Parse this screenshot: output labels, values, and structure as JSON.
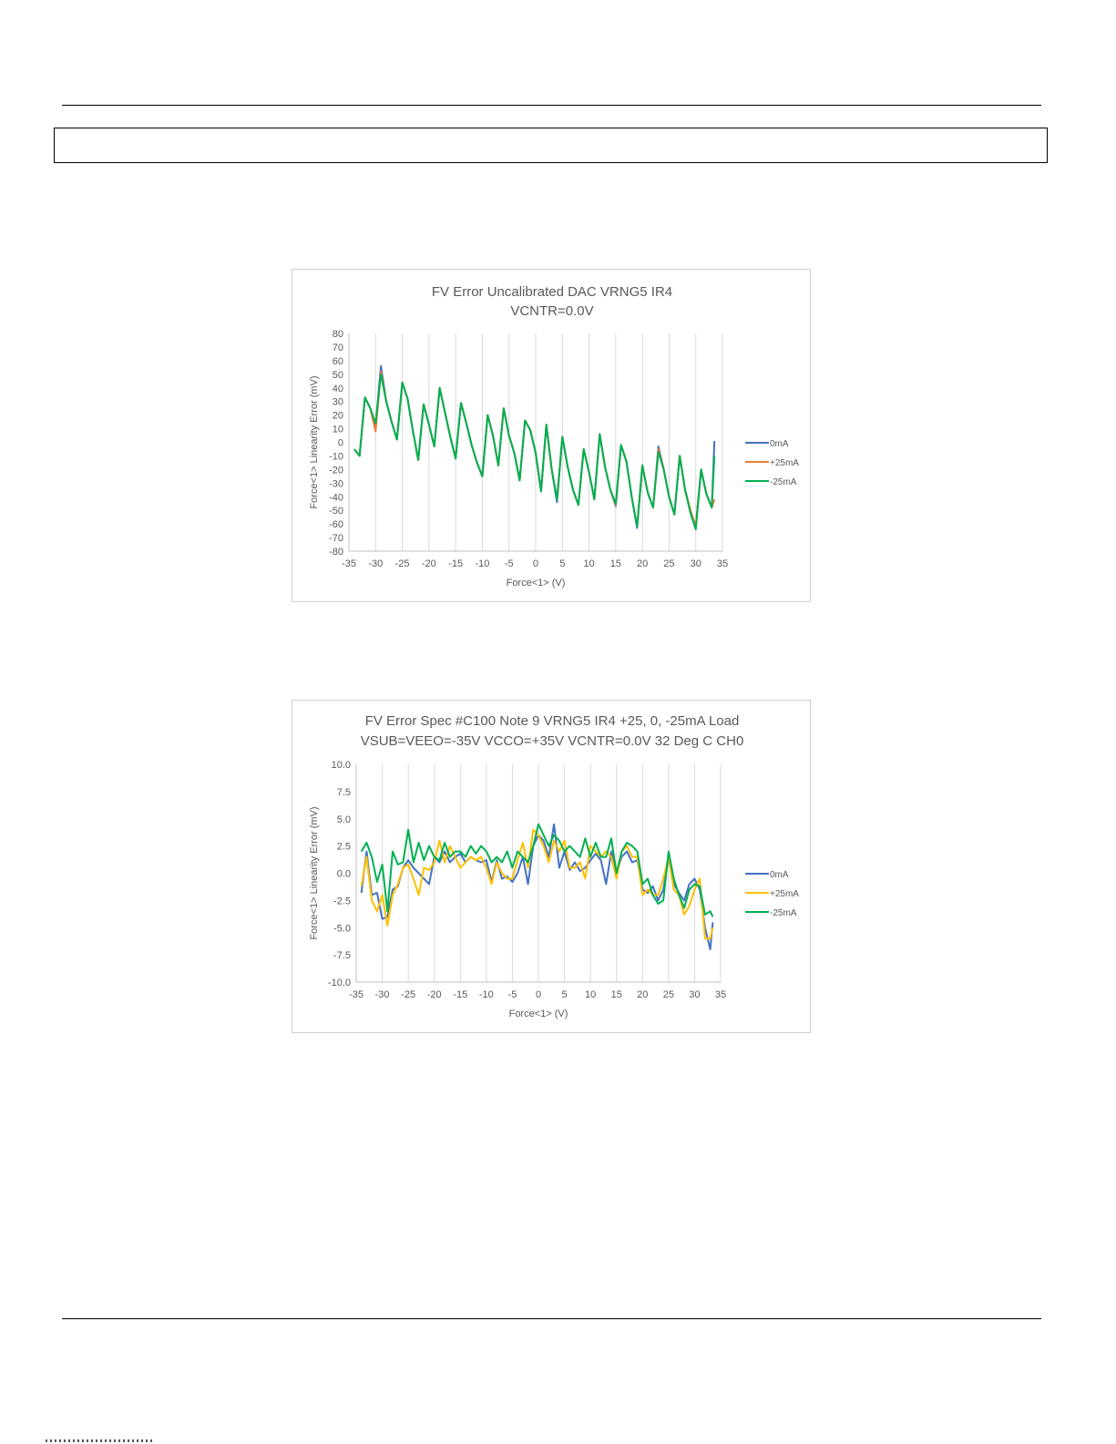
{
  "chart_data": [
    {
      "type": "line",
      "title": "FV Error Uncalibrated DAC VRNG5 IR4",
      "subtitle": "VCNTR=0.0V",
      "xlabel": "Force<1> (V)",
      "ylabel": "Force<1> Linearity Error (mV)",
      "xlim": [
        -35,
        35
      ],
      "ylim": [
        -80,
        80
      ],
      "xticks": [
        -35,
        -30,
        -25,
        -20,
        -15,
        -10,
        -5,
        0,
        5,
        10,
        15,
        20,
        25,
        30,
        35
      ],
      "yticks": [
        -80,
        -70,
        -60,
        -50,
        -40,
        -30,
        -20,
        -10,
        0,
        10,
        20,
        30,
        40,
        50,
        60,
        70,
        80
      ],
      "tick_decimals": 0,
      "grid": "vertical",
      "legend": "right",
      "x": [
        -34,
        -33,
        -32,
        -31,
        -30,
        -29,
        -28,
        -27,
        -26,
        -25,
        -24,
        -23,
        -22,
        -21,
        -20,
        -19,
        -18,
        -17,
        -16,
        -15,
        -14,
        -13,
        -12,
        -11,
        -10,
        -9,
        -8,
        -7,
        -6,
        -5,
        -4,
        -3,
        -2,
        -1,
        0,
        1,
        2,
        3,
        4,
        5,
        6,
        7,
        8,
        9,
        10,
        11,
        12,
        13,
        14,
        15,
        16,
        17,
        18,
        19,
        20,
        21,
        22,
        23,
        24,
        25,
        26,
        27,
        28,
        29,
        30,
        31,
        32,
        33,
        33.5
      ],
      "series": [
        {
          "name": "0mA",
          "color": "#4472C4",
          "values": [
            -5,
            -10,
            33,
            25,
            12,
            56,
            30,
            15,
            2,
            44,
            32,
            8,
            -13,
            28,
            13,
            -3,
            40,
            22,
            4,
            -12,
            29,
            14,
            -2,
            -15,
            -25,
            20,
            5,
            -17,
            25,
            5,
            -8,
            -28,
            16,
            9,
            -8,
            -36,
            13,
            -20,
            -44,
            4,
            -18,
            -35,
            -46,
            -5,
            -22,
            -42,
            6,
            -18,
            -35,
            -47,
            -2,
            -14,
            -40,
            -63,
            -17,
            -37,
            -48,
            -3,
            -20,
            -40,
            -53,
            -10,
            -35,
            -50,
            -62,
            -20,
            -38,
            -48,
            1
          ]
        },
        {
          "name": "+25mA",
          "color": "#ED7D31",
          "values": [
            -5,
            -10,
            33,
            25,
            8,
            52,
            30,
            15,
            2,
            44,
            32,
            8,
            -13,
            28,
            13,
            -3,
            40,
            22,
            4,
            -12,
            29,
            14,
            -2,
            -15,
            -25,
            20,
            5,
            -17,
            25,
            5,
            -8,
            -28,
            16,
            9,
            -8,
            -36,
            13,
            -20,
            -42,
            4,
            -18,
            -35,
            -46,
            -5,
            -22,
            -42,
            6,
            -18,
            -35,
            -46,
            -2,
            -14,
            -40,
            -62,
            -17,
            -37,
            -48,
            -5,
            -20,
            -40,
            -53,
            -10,
            -35,
            -50,
            -62,
            -20,
            -38,
            -48,
            -42
          ]
        },
        {
          "name": "-25mA",
          "color": "#00B050",
          "values": [
            -5,
            -10,
            33,
            25,
            14,
            50,
            30,
            15,
            2,
            44,
            32,
            8,
            -13,
            28,
            13,
            -3,
            40,
            22,
            4,
            -12,
            29,
            14,
            -2,
            -15,
            -25,
            20,
            5,
            -17,
            25,
            5,
            -8,
            -28,
            16,
            9,
            -8,
            -36,
            13,
            -20,
            -42,
            4,
            -18,
            -35,
            -46,
            -5,
            -22,
            -42,
            6,
            -18,
            -35,
            -45,
            -2,
            -14,
            -40,
            -62,
            -17,
            -37,
            -48,
            -7,
            -20,
            -40,
            -53,
            -10,
            -35,
            -52,
            -64,
            -20,
            -38,
            -48,
            -10
          ]
        }
      ]
    },
    {
      "type": "line",
      "title": "FV Error Spec #C100 Note 9 VRNG5 IR4 +25, 0, -25mA Load",
      "subtitle": "VSUB=VEEO=-35V VCCO=+35V VCNTR=0.0V 32 Deg C CH0",
      "xlabel": "Force<1> (V)",
      "ylabel": "Force<1> Linearity Error (mV)",
      "xlim": [
        -35,
        35
      ],
      "ylim": [
        -10,
        10
      ],
      "xticks": [
        -35,
        -30,
        -25,
        -20,
        -15,
        -10,
        -5,
        0,
        5,
        10,
        15,
        20,
        25,
        30,
        35
      ],
      "yticks": [
        -10,
        -7.5,
        -5,
        -2.5,
        0,
        2.5,
        5,
        7.5,
        10
      ],
      "tick_decimals": 1,
      "grid": "vertical",
      "legend": "right",
      "x": [
        -34,
        -33,
        -32,
        -31,
        -30,
        -29,
        -28,
        -27,
        -26,
        -25,
        -24,
        -23,
        -22,
        -21,
        -20,
        -19,
        -18,
        -17,
        -16,
        -15,
        -14,
        -13,
        -12,
        -11,
        -10,
        -9,
        -8,
        -7,
        -6,
        -5,
        -4,
        -3,
        -2,
        -1,
        0,
        1,
        2,
        3,
        4,
        5,
        6,
        7,
        8,
        9,
        10,
        11,
        12,
        13,
        14,
        15,
        16,
        17,
        18,
        19,
        20,
        21,
        22,
        23,
        24,
        25,
        26,
        27,
        28,
        29,
        30,
        31,
        32,
        33,
        33.5
      ],
      "series": [
        {
          "name": "0mA",
          "color": "#4472C4",
          "values": [
            -1.8,
            2.0,
            -2.0,
            -1.8,
            -4.2,
            -4.0,
            -1.5,
            -1.2,
            0.5,
            1.2,
            0.5,
            0.0,
            -0.5,
            -1.0,
            1.5,
            1.0,
            2.0,
            1.0,
            1.5,
            1.8,
            1.0,
            1.5,
            1.2,
            1.0,
            1.2,
            -0.8,
            1.2,
            -0.5,
            -0.3,
            -0.8,
            0.0,
            1.5,
            -1.0,
            2.5,
            3.5,
            3.0,
            1.5,
            4.5,
            0.5,
            2.0,
            0.3,
            1.0,
            0.2,
            0.5,
            1.2,
            1.8,
            1.2,
            -1.0,
            2.0,
            0.0,
            1.5,
            2.0,
            1.0,
            1.2,
            -1.5,
            -1.8,
            -1.2,
            -2.5,
            -1.5,
            1.5,
            -1.0,
            -1.8,
            -2.5,
            -1.0,
            -0.5,
            -1.5,
            -5.0,
            -7.0,
            -4.5
          ]
        },
        {
          "name": "+25mA",
          "color": "#FFC000",
          "values": [
            -1.2,
            1.5,
            -2.5,
            -3.5,
            -2.0,
            -4.8,
            -2.0,
            -1.0,
            0.5,
            0.8,
            -0.5,
            -2.0,
            0.5,
            0.3,
            1.0,
            3.0,
            1.0,
            2.5,
            1.5,
            0.5,
            1.0,
            1.5,
            1.2,
            1.5,
            0.5,
            -1.0,
            1.0,
            0.0,
            -0.5,
            -0.5,
            1.2,
            2.8,
            0.5,
            4.0,
            3.5,
            2.5,
            1.0,
            3.0,
            2.0,
            3.0,
            0.5,
            0.5,
            1.0,
            -0.5,
            2.5,
            2.0,
            1.5,
            2.0,
            1.5,
            -0.5,
            2.0,
            2.5,
            1.5,
            1.5,
            -2.0,
            -1.5,
            -2.0,
            -2.0,
            -0.5,
            1.5,
            -1.5,
            -2.0,
            -3.8,
            -3.0,
            -1.5,
            -0.5,
            -6.0,
            -6.0,
            -5.0
          ]
        },
        {
          "name": "-25mA",
          "color": "#00B050",
          "values": [
            2.0,
            2.8,
            1.5,
            -0.8,
            0.8,
            -3.5,
            2.0,
            0.8,
            1.0,
            4.0,
            1.0,
            2.8,
            1.2,
            2.5,
            1.5,
            1.2,
            2.8,
            1.5,
            2.0,
            2.0,
            1.5,
            2.5,
            1.8,
            2.5,
            2.0,
            1.0,
            1.5,
            1.0,
            2.0,
            0.5,
            2.0,
            1.5,
            1.0,
            2.5,
            4.5,
            3.5,
            2.5,
            3.5,
            3.0,
            2.0,
            2.5,
            2.0,
            1.5,
            3.2,
            1.5,
            2.8,
            1.5,
            1.5,
            3.2,
            0.0,
            2.0,
            2.8,
            2.5,
            2.0,
            -1.0,
            -0.5,
            -2.0,
            -2.8,
            -2.5,
            2.0,
            -0.5,
            -2.0,
            -3.2,
            -1.5,
            -1.0,
            -1.2,
            -3.8,
            -3.5,
            -4.0
          ]
        }
      ]
    }
  ]
}
